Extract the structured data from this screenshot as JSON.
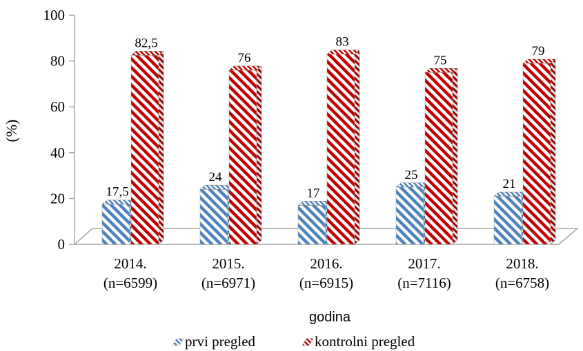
{
  "chart_data": {
    "type": "bar",
    "categories": [
      "2014.\n(n=6599)",
      "2015.\n(n=6971)",
      "2016.\n(n=6915)",
      "2017.\n(n=7116)",
      "2018.\n(n=6758)"
    ],
    "series": [
      {
        "name": "prvi pregled",
        "values": [
          17.5,
          24,
          17,
          25,
          21
        ],
        "labels": [
          "17,5",
          "24",
          "17",
          "25",
          "21"
        ],
        "color": "#4F81BD"
      },
      {
        "name": "kontrolni pregled",
        "values": [
          82.5,
          76,
          83,
          75,
          79
        ],
        "labels": [
          "82,5",
          "76",
          "83",
          "75",
          "79"
        ],
        "color": "#C00000"
      }
    ],
    "ylabel": "(%)",
    "xlabel": "godina",
    "ylim": [
      0,
      100
    ],
    "yticks": [
      0,
      20,
      40,
      60,
      80,
      100
    ],
    "grid": false,
    "legend": "bottom",
    "style": "3d-clustered-column, diagonal hatch fill"
  }
}
